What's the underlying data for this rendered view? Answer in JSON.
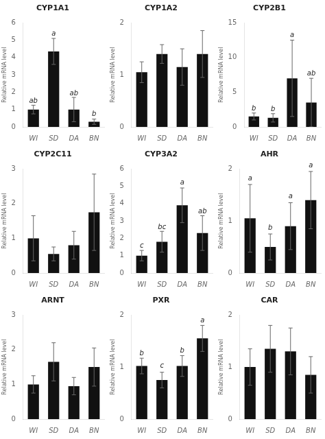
{
  "chart_data": [
    {
      "type": "bar",
      "title": "CYP1A1",
      "categories": [
        "WI",
        "SD",
        "DA",
        "BN"
      ],
      "values": [
        1.0,
        4.35,
        1.0,
        0.3
      ],
      "errors": [
        0.25,
        0.75,
        0.7,
        0.15
      ],
      "annotations": [
        {
          "category": "WI",
          "y": 1.3,
          "text": "ab"
        },
        {
          "category": "SD",
          "y": 5.15,
          "text": "a"
        },
        {
          "category": "DA",
          "y": 1.72,
          "text": "ab"
        },
        {
          "category": "BN",
          "y": 0.52,
          "text": "b"
        }
      ],
      "ylabel": "Relative mRNA level",
      "ylim": [
        0,
        6
      ],
      "yticks": [
        0,
        1,
        2,
        3,
        4,
        5,
        6
      ],
      "color": "#111111",
      "grid": false
    },
    {
      "type": "bar",
      "title": "CYP1A2",
      "categories": [
        "WI",
        "SD",
        "DA",
        "BN"
      ],
      "values": [
        1.05,
        1.4,
        1.15,
        1.4
      ],
      "errors": [
        0.2,
        0.18,
        0.35,
        0.45
      ],
      "ylabel": "Relative mRNA level",
      "ylim": [
        0,
        2
      ],
      "yticks": [
        0,
        1,
        2
      ],
      "color": "#111111",
      "grid": false
    },
    {
      "type": "bar",
      "title": "CYP2B1",
      "categories": [
        "WI",
        "SD",
        "DA",
        "BN"
      ],
      "values": [
        1.5,
        1.3,
        7.0,
        3.5
      ],
      "errors": [
        0.5,
        0.6,
        5.5,
        3.5
      ],
      "annotations": [
        {
          "category": "WI",
          "y": 2.1,
          "text": "b"
        },
        {
          "category": "SD",
          "y": 2.0,
          "text": "b"
        },
        {
          "category": "DA",
          "y": 12.7,
          "text": "a"
        },
        {
          "category": "BN",
          "y": 7.2,
          "text": "ab"
        }
      ],
      "ylabel": "Relative mRNA level",
      "ylim": [
        0,
        15
      ],
      "yticks": [
        0,
        5,
        10,
        15
      ],
      "color": "#111111",
      "grid": false
    },
    {
      "type": "bar",
      "title": "CYP2C11",
      "categories": [
        "WI",
        "SD",
        "DA",
        "BN"
      ],
      "values": [
        1.0,
        0.55,
        0.8,
        1.75
      ],
      "errors": [
        0.65,
        0.2,
        0.4,
        1.1
      ],
      "ylabel": "Relative mRNA level",
      "ylim": [
        0,
        3
      ],
      "yticks": [
        0,
        1,
        2,
        3
      ],
      "color": "#111111",
      "grid": false
    },
    {
      "type": "bar",
      "title": "CYP3A2",
      "categories": [
        "WI",
        "SD",
        "DA",
        "BN"
      ],
      "values": [
        1.0,
        1.8,
        3.9,
        2.3
      ],
      "errors": [
        0.3,
        0.6,
        1.0,
        1.0
      ],
      "annotations": [
        {
          "category": "WI",
          "y": 1.35,
          "text": "c"
        },
        {
          "category": "SD",
          "y": 2.45,
          "text": "bc"
        },
        {
          "category": "DA",
          "y": 5.0,
          "text": "a"
        },
        {
          "category": "BN",
          "y": 3.35,
          "text": "ab"
        }
      ],
      "ylabel": "Relative mRNA level",
      "ylim": [
        0,
        6
      ],
      "yticks": [
        0,
        1,
        2,
        3,
        4,
        5,
        6
      ],
      "color": "#111111",
      "grid": false
    },
    {
      "type": "bar",
      "title": "AHR",
      "categories": [
        "WI",
        "SD",
        "DA",
        "BN"
      ],
      "values": [
        1.05,
        0.5,
        0.9,
        1.4
      ],
      "errors": [
        0.65,
        0.25,
        0.45,
        0.55
      ],
      "annotations": [
        {
          "category": "WI",
          "y": 1.75,
          "text": "a"
        },
        {
          "category": "SD",
          "y": 0.8,
          "text": "b"
        },
        {
          "category": "DA",
          "y": 1.4,
          "text": "a"
        },
        {
          "category": "BN",
          "y": 2.0,
          "text": "a"
        }
      ],
      "ylabel": "Relative mRNA level",
      "ylim": [
        0,
        2
      ],
      "yticks": [
        0,
        1,
        2
      ],
      "color": "#111111",
      "grid": false
    },
    {
      "type": "bar",
      "title": "ARNT",
      "categories": [
        "WI",
        "SD",
        "DA",
        "BN"
      ],
      "values": [
        1.0,
        1.65,
        0.95,
        1.5
      ],
      "errors": [
        0.25,
        0.55,
        0.25,
        0.55
      ],
      "ylabel": "Relative mRNA level",
      "ylim": [
        0,
        3
      ],
      "yticks": [
        0,
        1,
        2,
        3
      ],
      "color": "#111111",
      "grid": false
    },
    {
      "type": "bar",
      "title": "PXR",
      "categories": [
        "WI",
        "SD",
        "DA",
        "BN"
      ],
      "values": [
        1.02,
        0.75,
        1.02,
        1.55
      ],
      "errors": [
        0.15,
        0.15,
        0.2,
        0.25
      ],
      "annotations": [
        {
          "category": "WI",
          "y": 1.2,
          "text": "b"
        },
        {
          "category": "SD",
          "y": 0.95,
          "text": "c"
        },
        {
          "category": "DA",
          "y": 1.25,
          "text": "b"
        },
        {
          "category": "BN",
          "y": 1.83,
          "text": "a"
        }
      ],
      "ylabel": "Relative mRNA level",
      "ylim": [
        0,
        2
      ],
      "yticks": [
        0,
        1,
        2
      ],
      "color": "#111111",
      "grid": false
    },
    {
      "type": "bar",
      "title": "CAR",
      "categories": [
        "WI",
        "SD",
        "DA",
        "BN"
      ],
      "values": [
        1.0,
        1.35,
        1.3,
        0.85
      ],
      "errors": [
        0.35,
        0.45,
        0.45,
        0.35
      ],
      "ylabel": "Relative mRNA level",
      "ylim": [
        0,
        2
      ],
      "yticks": [
        0,
        1,
        2
      ],
      "color": "#111111",
      "grid": false
    }
  ]
}
